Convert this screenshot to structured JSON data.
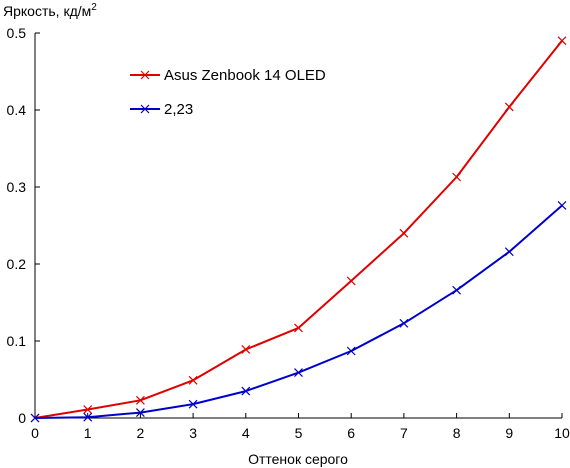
{
  "chart_data": {
    "type": "line",
    "xlabel": "Оттенок серого",
    "ylabel_main": "Яркость, кд/м",
    "ylabel_sup": "2",
    "xlim": [
      0,
      10
    ],
    "ylim": [
      0,
      0.5
    ],
    "x_ticks": [
      "0",
      "1",
      "2",
      "3",
      "4",
      "5",
      "6",
      "7",
      "8",
      "9",
      "10"
    ],
    "y_ticks": [
      "0",
      "0.1",
      "0.2",
      "0.3",
      "0.4",
      "0.5"
    ],
    "x": [
      0,
      1,
      2,
      3,
      4,
      5,
      6,
      7,
      8,
      9,
      10
    ],
    "series": [
      {
        "name": "Asus Zenbook 14 OLED",
        "color": "#e00000",
        "values": [
          0,
          0.011,
          0.023,
          0.049,
          0.089,
          0.117,
          0.178,
          0.24,
          0.313,
          0.404,
          0.49
        ]
      },
      {
        "name": "2,23",
        "color": "#0000cc",
        "values": [
          0,
          0.001,
          0.007,
          0.018,
          0.035,
          0.059,
          0.087,
          0.123,
          0.166,
          0.216,
          0.276
        ]
      }
    ],
    "legend_position": "top-left",
    "grid": false
  }
}
